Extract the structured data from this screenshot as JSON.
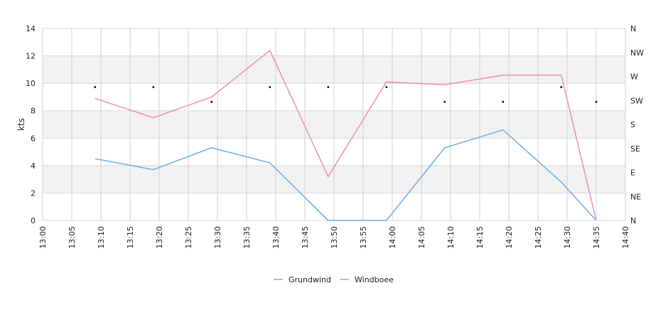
{
  "chart_data": {
    "type": "line",
    "ylabel": "kts",
    "ylim": [
      0,
      14
    ],
    "y_ticks": [
      "0",
      "2",
      "4",
      "6",
      "8",
      "10",
      "12",
      "14"
    ],
    "x_ticks": [
      "13:00",
      "13:05",
      "13:10",
      "13:15",
      "13:20",
      "13:25",
      "13:30",
      "13:35",
      "13:40",
      "13:45",
      "13:50",
      "13:55",
      "14:00",
      "14:05",
      "14:10",
      "14:15",
      "14:20",
      "14:25",
      "14:30",
      "14:35",
      "14:40"
    ],
    "x_range": [
      "13:00",
      "14:40"
    ],
    "right_axis": {
      "labels": [
        "N",
        "NE",
        "E",
        "SE",
        "S",
        "SW",
        "W",
        "NW",
        "N"
      ]
    },
    "grid": true,
    "legend_position": "bottom",
    "series": [
      {
        "name": "Grundwind",
        "color": "#6aaee8",
        "x": [
          "13:09",
          "13:19",
          "13:29",
          "13:39",
          "13:49",
          "13:59",
          "14:09",
          "14:19",
          "14:29",
          "14:35"
        ],
        "y": [
          4.5,
          3.7,
          5.3,
          4.2,
          0,
          0,
          5.3,
          6.6,
          2.8,
          0
        ]
      },
      {
        "name": "Windboee",
        "color": "#f08cba",
        "x": [
          "13:09",
          "13:19",
          "13:29",
          "13:39",
          "13:49",
          "13:59",
          "14:09",
          "14:19",
          "14:29",
          "14:35"
        ],
        "y": [
          8.9,
          7.5,
          9.0,
          12.4,
          3.2,
          10.1,
          9.9,
          10.6,
          10.6,
          0
        ]
      }
    ],
    "direction_markers": {
      "x": [
        "13:09",
        "13:19",
        "13:29",
        "13:39",
        "13:49",
        "13:59",
        "14:09",
        "14:19",
        "14:29",
        "14:35"
      ],
      "direction": [
        "W",
        "W",
        "SW",
        "W",
        "W",
        "W",
        "SW",
        "SW",
        "W",
        "SW"
      ]
    }
  }
}
